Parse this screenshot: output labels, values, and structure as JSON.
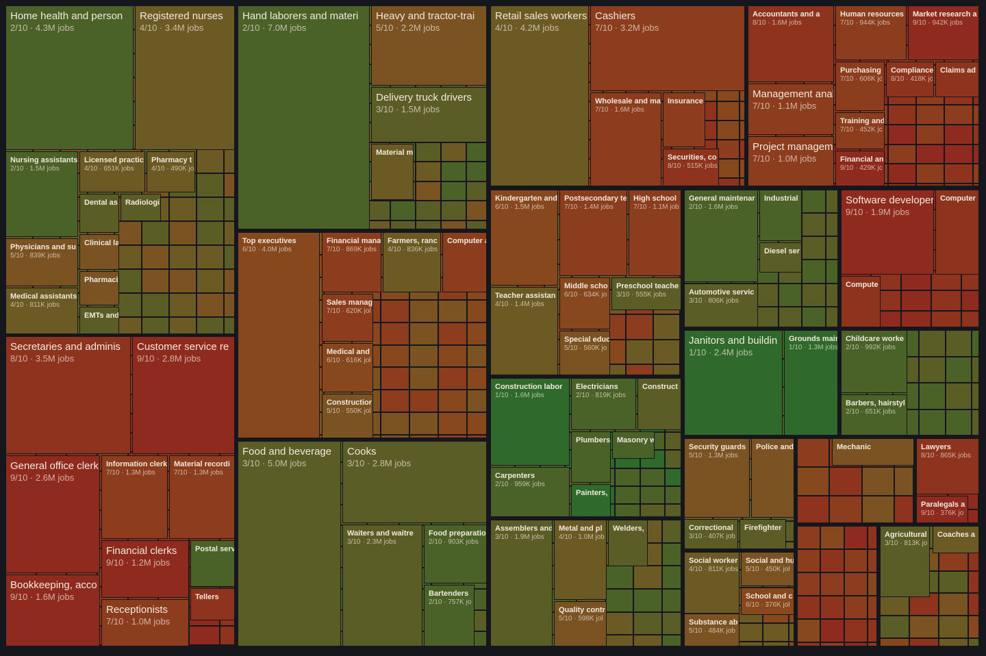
{
  "tiles": [
    {
      "label": "Home health and person",
      "detail": "2/10 · 4.3M jobs"
    },
    {
      "label": "Registered nurses",
      "detail": "4/10 · 3.4M jobs"
    },
    {
      "label": "Nursing assistants",
      "detail": "2/10 · 1.5M jobs"
    },
    {
      "label": "Licensed practic",
      "detail": "4/10 · 651K jobs"
    },
    {
      "label": "Pharmacy t",
      "detail": "4/10 · 490K jo"
    },
    {
      "label": "Dental as"
    },
    {
      "label": "Radiologi"
    },
    {
      "label": "Physicians and su",
      "detail": "5/10 · 839K jobs"
    },
    {
      "label": "Clinical la"
    },
    {
      "label": "Pharmaci"
    },
    {
      "label": "Medical assistants",
      "detail": "4/10 · 811K jobs"
    },
    {
      "label": "EMTs and"
    },
    {
      "label": "Secretaries and adminis",
      "detail": "8/10 · 3.5M jobs"
    },
    {
      "label": "Customer service re",
      "detail": "9/10 · 2.8M jobs"
    },
    {
      "label": "General office clerk",
      "detail": "9/10 · 2.6M jobs"
    },
    {
      "label": "Information clerk",
      "detail": "7/10 · 1.3M jobs"
    },
    {
      "label": "Material recordi",
      "detail": "7/10 · 1.3M jobs"
    },
    {
      "label": "Financial clerks",
      "detail": "9/10 · 1.2M jobs"
    },
    {
      "label": "Postal serv"
    },
    {
      "label": "Bookkeeping, acco",
      "detail": "9/10 · 1.6M jobs"
    },
    {
      "label": "Receptionists",
      "detail": "7/10 · 1.0M jobs"
    },
    {
      "label": "Tellers"
    },
    {
      "label": "Hand laborers and materi",
      "detail": "2/10 · 7.0M jobs"
    },
    {
      "label": "Heavy and tractor-trai",
      "detail": "5/10 · 2.2M jobs"
    },
    {
      "label": "Delivery truck drivers",
      "detail": "3/10 · 1.5M jobs"
    },
    {
      "label": "Material m"
    },
    {
      "label": "Top executives",
      "detail": "6/10 · 4.0M jobs"
    },
    {
      "label": "Financial mana",
      "detail": "7/10 · 869K jobs"
    },
    {
      "label": "Farmers, ranc",
      "detail": "4/10 · 836K jobs"
    },
    {
      "label": "Computer a"
    },
    {
      "label": "Sales manag",
      "detail": "7/10 · 620K jol"
    },
    {
      "label": "Medical and",
      "detail": "6/10 · 616K jol"
    },
    {
      "label": "Constructior",
      "detail": "5/10 · 550K jol"
    },
    {
      "label": "Food and beverage",
      "detail": "3/10 · 5.0M jobs"
    },
    {
      "label": "Cooks",
      "detail": "3/10 · 2.8M jobs"
    },
    {
      "label": "Waiters and waitre",
      "detail": "3/10 · 2.3M jobs"
    },
    {
      "label": "Food preparatio",
      "detail": "2/10 · 903K jobs"
    },
    {
      "label": "Bartenders",
      "detail": "2/10 · 757K jo"
    },
    {
      "label": "Retail sales workers",
      "detail": "4/10 · 4.2M jobs"
    },
    {
      "label": "Cashiers",
      "detail": "7/10 · 3.2M jobs"
    },
    {
      "label": "Wholesale and ma",
      "detail": "7/10 · 1.6M jobs"
    },
    {
      "label": "Insurance"
    },
    {
      "label": "Securities, co",
      "detail": "8/10 · 515K jobs"
    },
    {
      "label": "Accountants and a",
      "detail": "8/10 · 1.6M jobs"
    },
    {
      "label": "Human resources",
      "detail": "7/10 · 944K jobs"
    },
    {
      "label": "Market research a",
      "detail": "9/10 · 942K jobs"
    },
    {
      "label": "Purchasing",
      "detail": "7/10 · 606K jc"
    },
    {
      "label": "Compliance",
      "detail": "8/10 · 418K jc"
    },
    {
      "label": "Claims ad"
    },
    {
      "label": "Management analy",
      "detail": "7/10 · 1.1M jobs"
    },
    {
      "label": "Training and",
      "detail": "7/10 · 452K jc"
    },
    {
      "label": "Project manageme",
      "detail": "7/10 · 1.0M jobs"
    },
    {
      "label": "Financial an",
      "detail": "9/10 · 429K jc"
    },
    {
      "label": "Kindergarten and",
      "detail": "6/10 · 1.5M jobs"
    },
    {
      "label": "Postsecondary te",
      "detail": "7/10 · 1.4M jobs"
    },
    {
      "label": "High school",
      "detail": "7/10 · 1.1M job"
    },
    {
      "label": "Teacher assistan",
      "detail": "4/10 · 1.4M jobs"
    },
    {
      "label": "Middle scho",
      "detail": "6/10 · 634K jo"
    },
    {
      "label": "Preschool teache",
      "detail": "3/10 · 555K jobs"
    },
    {
      "label": "Special educ",
      "detail": "5/10 · 560K jo"
    },
    {
      "label": "General maintenar",
      "detail": "2/10 · 1.6M jobs"
    },
    {
      "label": "Industrial"
    },
    {
      "label": "Diesel ser"
    },
    {
      "label": "Automotive servic",
      "detail": "3/10 · 806K jobs"
    },
    {
      "label": "Software developer",
      "detail": "9/10 · 1.9M jobs"
    },
    {
      "label": "Computer"
    },
    {
      "label": "Compute"
    },
    {
      "label": "Janitors and buildin",
      "detail": "1/10 · 2.4M jobs"
    },
    {
      "label": "Grounds main",
      "detail": "1/10 · 1.3M jobs"
    },
    {
      "label": "Childcare worke",
      "detail": "2/10 · 992K jobs"
    },
    {
      "label": "Barbers, hairstyl",
      "detail": "2/10 · 651K jobs"
    },
    {
      "label": "Construction labor",
      "detail": "1/10 · 1.6M jobs"
    },
    {
      "label": "Electricians",
      "detail": "2/10 · 819K jobs"
    },
    {
      "label": "Construct"
    },
    {
      "label": "Carpenters",
      "detail": "2/10 · 959K jobs"
    },
    {
      "label": "Plumbers"
    },
    {
      "label": "Masonry w"
    },
    {
      "label": "Painters,"
    },
    {
      "label": "Assemblers and",
      "detail": "3/10 · 1.9M jobs"
    },
    {
      "label": "Metal and pl",
      "detail": "4/10 · 1.0M job"
    },
    {
      "label": "Welders,"
    },
    {
      "label": "Quality contr",
      "detail": "5/10 · 598K jol"
    },
    {
      "label": "Security guards",
      "detail": "5/10 · 1.3M jobs"
    },
    {
      "label": "Police and"
    },
    {
      "label": "Correctional",
      "detail": "3/10 · 407K job"
    },
    {
      "label": "Firefighter"
    },
    {
      "label": "Social worker",
      "detail": "4/10 · 811K jobs"
    },
    {
      "label": "Social and hu",
      "detail": "5/10 · 450K jol"
    },
    {
      "label": "School and c",
      "detail": "6/10 · 376K jol"
    },
    {
      "label": "Substance ab",
      "detail": "5/10 · 484K job"
    },
    {
      "label": "Mechanic"
    },
    {
      "label": "Lawyers",
      "detail": "8/10 · 865K jobs"
    },
    {
      "label": "Paralegals a",
      "detail": "9/10 · 376K jo"
    },
    {
      "label": "Agricultural",
      "detail": "3/10 · 813K jo"
    },
    {
      "label": "Coaches a"
    }
  ]
}
